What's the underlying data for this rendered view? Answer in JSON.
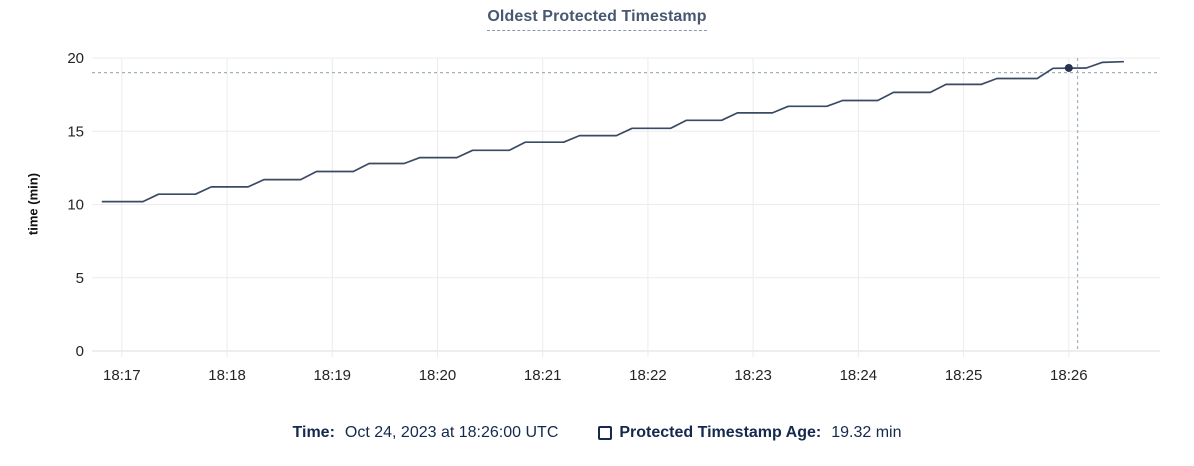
{
  "title": "Oldest Protected Timestamp",
  "hover_legend": {
    "time_label": "Time:",
    "time_value": "Oct 24, 2023 at 18:26:00 UTC",
    "series_label": "Protected Timestamp Age:",
    "series_value": "19.32 min"
  },
  "colors": {
    "line": "#3b4a63",
    "hover_dot": "#26334d",
    "grid": "#ececec",
    "axis_line": "#dcdcdc",
    "crosshair": "#a0b2c0",
    "title_text": "#475872",
    "legend_text": "#13294e",
    "tick_text": "#242424"
  },
  "chart_data": {
    "type": "line",
    "title": "Oldest Protected Timestamp",
    "xlabel": "",
    "ylabel": "time (min)",
    "ylim": [
      0,
      20
    ],
    "y_ticks": [
      0,
      5,
      10,
      15,
      20
    ],
    "x_ticks": [
      "18:17",
      "18:18",
      "18:19",
      "18:20",
      "18:21",
      "18:22",
      "18:23",
      "18:24",
      "18:25",
      "18:26"
    ],
    "x_domain": [
      "18:16:43",
      "18:26:52"
    ],
    "grid": true,
    "legend_position": "bottom",
    "series": [
      {
        "name": "Protected Timestamp Age",
        "unit": "min",
        "points": [
          [
            "18:16:49",
            10.2
          ],
          [
            "18:17:12",
            10.2
          ],
          [
            "18:17:21",
            10.7
          ],
          [
            "18:17:42",
            10.7
          ],
          [
            "18:17:51",
            11.2
          ],
          [
            "18:18:12",
            11.2
          ],
          [
            "18:18:21",
            11.7
          ],
          [
            "18:18:42",
            11.7
          ],
          [
            "18:18:51",
            12.25
          ],
          [
            "18:19:12",
            12.25
          ],
          [
            "18:19:21",
            12.8
          ],
          [
            "18:19:41",
            12.8
          ],
          [
            "18:19:50",
            13.2
          ],
          [
            "18:20:11",
            13.2
          ],
          [
            "18:20:20",
            13.7
          ],
          [
            "18:20:41",
            13.7
          ],
          [
            "18:20:50",
            14.25
          ],
          [
            "18:21:12",
            14.25
          ],
          [
            "18:21:21",
            14.7
          ],
          [
            "18:21:42",
            14.7
          ],
          [
            "18:21:51",
            15.2
          ],
          [
            "18:22:13",
            15.2
          ],
          [
            "18:22:22",
            15.75
          ],
          [
            "18:22:42",
            15.75
          ],
          [
            "18:22:51",
            16.25
          ],
          [
            "18:23:11",
            16.25
          ],
          [
            "18:23:20",
            16.7
          ],
          [
            "18:23:42",
            16.7
          ],
          [
            "18:23:51",
            17.1
          ],
          [
            "18:24:11",
            17.1
          ],
          [
            "18:24:20",
            17.65
          ],
          [
            "18:24:41",
            17.65
          ],
          [
            "18:24:50",
            18.2
          ],
          [
            "18:25:10",
            18.2
          ],
          [
            "18:25:19",
            18.6
          ],
          [
            "18:25:42",
            18.6
          ],
          [
            "18:25:51",
            19.3
          ],
          [
            "18:26:10",
            19.32
          ],
          [
            "18:26:19",
            19.7
          ],
          [
            "18:26:31",
            19.75
          ]
        ]
      }
    ],
    "hover": {
      "time": "18:26:00",
      "value": 19.32,
      "crosshair_time": "18:26:05",
      "crosshair_value": 19.0
    }
  }
}
